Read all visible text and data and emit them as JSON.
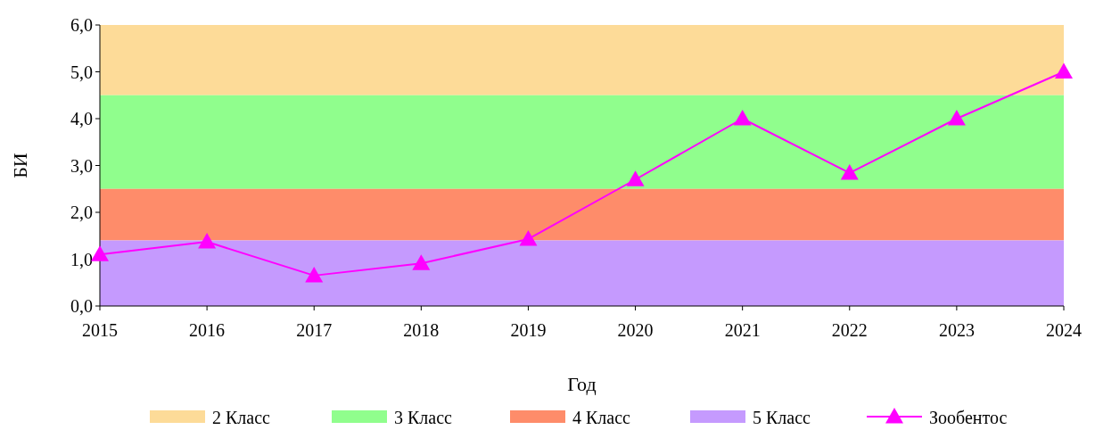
{
  "chart_data": {
    "type": "line",
    "xlabel": "Год",
    "ylabel": "БИ",
    "x": [
      2015,
      2016,
      2017,
      2018,
      2019,
      2020,
      2021,
      2022,
      2023,
      2024
    ],
    "series": [
      {
        "name": "Зообентос",
        "color": "#ff00ff",
        "values": [
          1.1,
          1.37,
          0.65,
          0.91,
          1.43,
          2.7,
          4.0,
          2.84,
          4.0,
          5.0
        ]
      }
    ],
    "xlim": [
      2015,
      2024
    ],
    "xticks": [
      2015,
      2016,
      2017,
      2018,
      2019,
      2020,
      2021,
      2022,
      2023,
      2024
    ],
    "ylim": [
      0,
      6
    ],
    "yticks": [
      {
        "value": 0,
        "label": "0,0"
      },
      {
        "value": 1,
        "label": "1,0"
      },
      {
        "value": 2,
        "label": "2,0"
      },
      {
        "value": 3,
        "label": "3,0"
      },
      {
        "value": 4,
        "label": "4,0"
      },
      {
        "value": 5,
        "label": "5,0"
      },
      {
        "value": 6,
        "label": "6,0"
      }
    ],
    "bands": [
      {
        "axis": "y",
        "from": 4.5,
        "to": 6,
        "label": "2 Класс",
        "color": "#fddb98"
      },
      {
        "axis": "y",
        "from": 2.5,
        "to": 4.5,
        "label": "3 Класс",
        "color": "#90fe8d"
      },
      {
        "axis": "y",
        "from": 1.4,
        "to": 2.5,
        "label": "4 Класс",
        "color": "#fe8c6a"
      },
      {
        "axis": "y",
        "from": 0,
        "to": 1.4,
        "label": "5 Класс",
        "color": "#c59afe"
      }
    ],
    "marker": "triangle",
    "line_style": "solid",
    "legend": "bottom",
    "grid": false
  }
}
